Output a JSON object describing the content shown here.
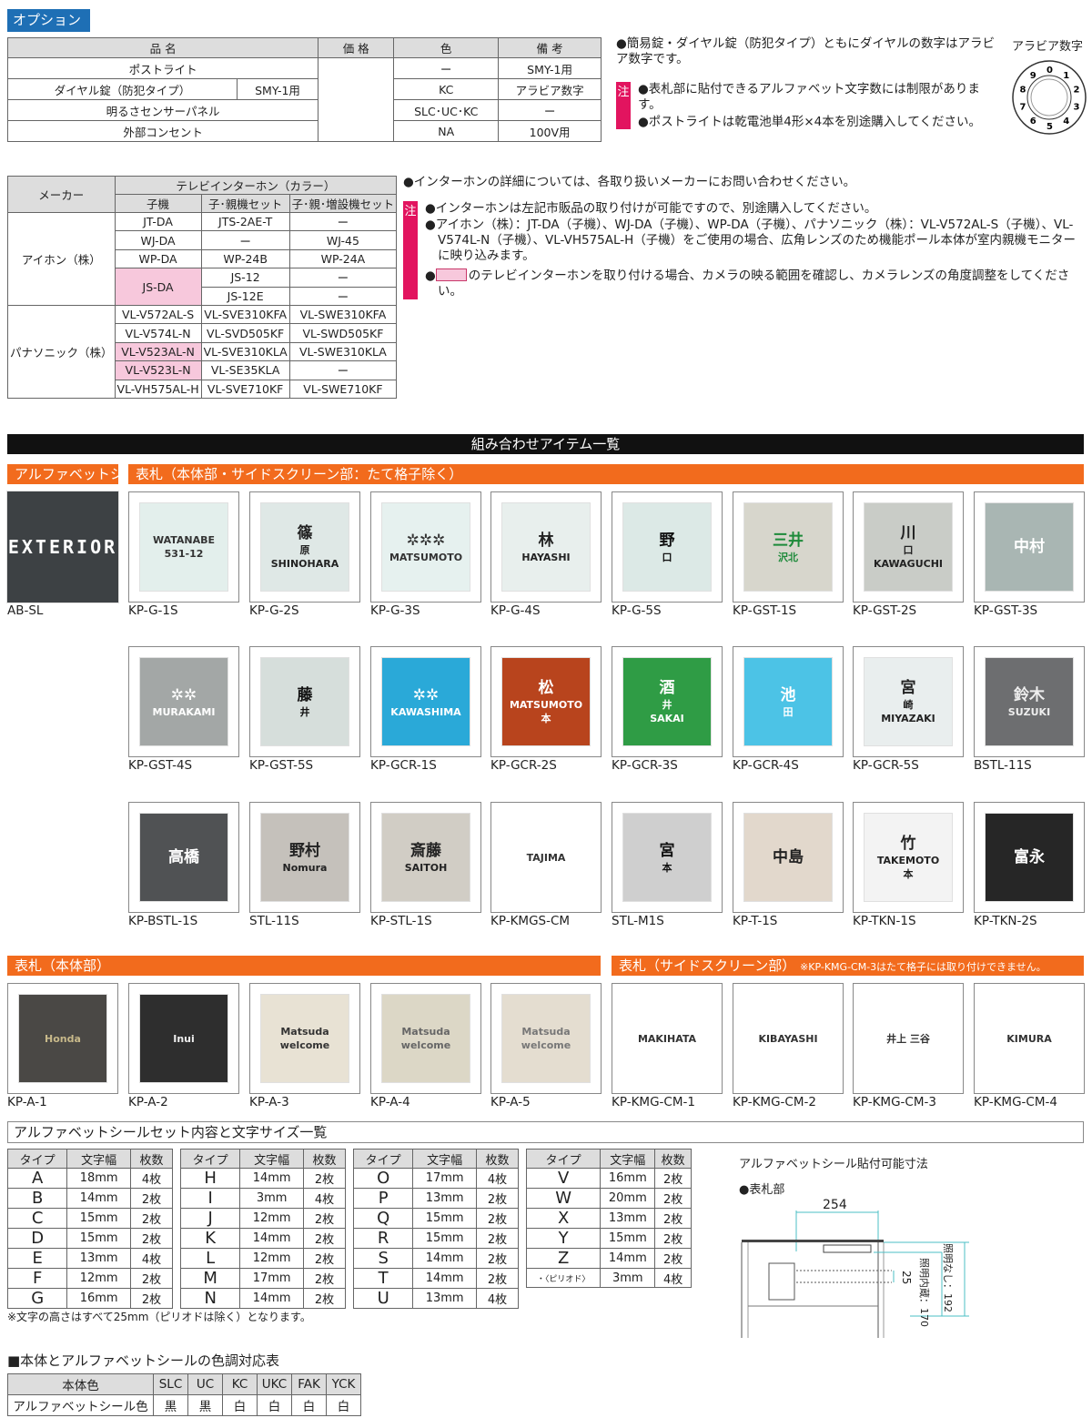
{
  "options": {
    "tag": "オプション",
    "headers": [
      "品 名",
      "価 格",
      "色",
      "備 考"
    ],
    "rows": [
      {
        "name": "ポストライト",
        "sub": "",
        "color": "ー",
        "note": "SMY-1用"
      },
      {
        "name": "ダイヤル錠（防犯タイプ）",
        "sub": "SMY-1用",
        "color": "KC",
        "note": "アラビア数字"
      },
      {
        "name": "明るさセンサーパネル",
        "sub": "",
        "color": "SLC･UC･KC",
        "note": "ー"
      },
      {
        "name": "外部コンセント",
        "sub": "",
        "color": "NA",
        "note": "100V用"
      }
    ],
    "note1": "●簡易錠・ダイヤル錠（防犯タイプ）ともにダイヤルの数字はアラビア数字です。",
    "chu": "注",
    "note2": "●表札部に貼付できるアルファベット文字数には制限があります。",
    "note3": "●ポストライトは乾電池単4形×4本を別途購入してください。",
    "dial_label": "アラビア数字",
    "dial_digits": [
      "0",
      "1",
      "2",
      "3",
      "4",
      "5",
      "6",
      "7",
      "8",
      "9"
    ]
  },
  "intercom": {
    "maker_header": "メーカー",
    "group_header": "テレビインターホン（カラー）",
    "col_headers": [
      "子機",
      "子･親機セット",
      "子･親･増設機セット"
    ],
    "makers": [
      "アイホン（株）",
      "パナソニック（株）"
    ],
    "rows": [
      [
        "JT-DA",
        "JTS-2AE-T",
        "ー"
      ],
      [
        "WJ-DA",
        "ー",
        "WJ-45"
      ],
      [
        "WP-DA",
        "WP-24B",
        "WP-24A"
      ],
      [
        "JS-DA",
        "JS-12",
        "ー"
      ],
      [
        "",
        "JS-12E",
        "ー"
      ],
      [
        "VL-V572AL-S",
        "VL-SVE310KFA",
        "VL-SWE310KFA"
      ],
      [
        "VL-V574L-N",
        "VL-SVD505KF",
        "VL-SWD505KF"
      ],
      [
        "VL-V523AL-N",
        "VL-SVE310KLA",
        "VL-SWE310KLA"
      ],
      [
        "VL-V523L-N",
        "VL-SE35KLA",
        "ー"
      ],
      [
        "VL-VH575AL-H",
        "VL-SVE710KF",
        "VL-SWE710KF"
      ]
    ],
    "highlight_color": "#f7c8dc",
    "note_top": "●インターホンの詳細については、各取り扱いメーカーにお問い合わせください。",
    "chu": "注",
    "note_a": "●インターホンは左記市販品の取り付けが可能ですので、別途購入してください。",
    "note_b": "●アイホン（株）：JT-DA（子機）、WJ-DA（子機）、WP-DA（子機）、パナソニック（株）：VL-V572AL-S（子機）、VL-V574L-N（子機）、VL-VH575AL-H（子機）をご使用の場合、広角レンズのため機能ポール本体が室内親機モニターに映り込みます。",
    "note_c": "のテレビインターホンを取り付ける場合、カメラの映る範囲を確認し、カメラレンズの角度調整をしてください。"
  },
  "items": {
    "title": "組み合わせアイテム一覧",
    "bar_alpha": "アルファベットシール",
    "bar_plate": "表札（本体部・サイドスクリーン部：たて格子除く）",
    "bar_body": "表札（本体部）",
    "bar_side": "表札（サイドスクリーン部）",
    "bar_side_note": "※KP-KMG-CM-3はたて格子には取り付けできません。",
    "accent": "#f26b1d",
    "tiles": [
      {
        "code": "AB-SL",
        "lines": [
          "EXTERIOR"
        ],
        "bg": "#3d4144",
        "fg": "#fff",
        "full": true
      },
      {
        "code": "KP-G-1S",
        "lines": [
          "WATANABE",
          "531-12"
        ],
        "bg": "#e3efec",
        "fg": "#333"
      },
      {
        "code": "KP-G-2S",
        "lines": [
          "篠",
          "原",
          "SHINOHARA"
        ],
        "bg": "#dfe8e6",
        "fg": "#222"
      },
      {
        "code": "KP-G-3S",
        "lines": [
          "✲✲✲",
          "MATSUMOTO"
        ],
        "bg": "#e6f1ef",
        "fg": "#333"
      },
      {
        "code": "KP-G-4S",
        "lines": [
          "林",
          "HAYASHI"
        ],
        "bg": "#e8efed",
        "fg": "#222"
      },
      {
        "code": "KP-G-5S",
        "lines": [
          "野",
          "口"
        ],
        "bg": "#dce9e6",
        "fg": "#111"
      },
      {
        "code": "KP-GST-1S",
        "lines": [
          "三井",
          "沢北"
        ],
        "bg": "#d7d6cc",
        "fg": "#1d8a3a"
      },
      {
        "code": "KP-GST-2S",
        "lines": [
          "川",
          "口",
          "KAWAGUCHI"
        ],
        "bg": "#c9ccc7",
        "fg": "#222"
      },
      {
        "code": "KP-GST-3S",
        "lines": [
          "中村"
        ],
        "bg": "#a9b6b3",
        "fg": "#fff"
      },
      {
        "code": "KP-GST-4S",
        "lines": [
          "✲✲",
          "MURAKAMI"
        ],
        "bg": "#a3a7a6",
        "fg": "#fff"
      },
      {
        "code": "KP-GST-5S",
        "lines": [
          "藤",
          "井"
        ],
        "bg": "#d6dedb",
        "fg": "#111"
      },
      {
        "code": "KP-GCR-1S",
        "lines": [
          "✲✲",
          "KAWASHIMA"
        ],
        "bg": "#2aa9d8",
        "fg": "#fff"
      },
      {
        "code": "KP-GCR-2S",
        "lines": [
          "松",
          "MATSUMOTO",
          "本"
        ],
        "bg": "#b8441d",
        "fg": "#fff"
      },
      {
        "code": "KP-GCR-3S",
        "lines": [
          "酒",
          "井",
          "SAKAI"
        ],
        "bg": "#2f9c45",
        "fg": "#fff"
      },
      {
        "code": "KP-GCR-4S",
        "lines": [
          "池",
          "田"
        ],
        "bg": "#4cc3e6",
        "fg": "#fff"
      },
      {
        "code": "KP-GCR-5S",
        "lines": [
          "宮",
          "崎",
          "MIYAZAKI"
        ],
        "bg": "#e9eeee",
        "fg": "#222"
      },
      {
        "code": "BSTL-11S",
        "lines": [
          "鈴木",
          "SUZUKI"
        ],
        "bg": "#6d6e70",
        "fg": "#eee"
      },
      {
        "code": "KP-BSTL-1S",
        "lines": [
          "高橋"
        ],
        "bg": "#505254",
        "fg": "#fff"
      },
      {
        "code": "STL-11S",
        "lines": [
          "野村",
          "Nomura"
        ],
        "bg": "#c5c1bb",
        "fg": "#222"
      },
      {
        "code": "KP-STL-1S",
        "lines": [
          "斎藤",
          "SAITOH"
        ],
        "bg": "#d1cdc5",
        "fg": "#222"
      },
      {
        "code": "KP-KMGS-CM",
        "lines": [
          "TAJIMA"
        ],
        "bg": "#fff",
        "fg": "#333"
      },
      {
        "code": "STL-M1S",
        "lines": [
          "宮",
          "本"
        ],
        "bg": "#cfcfcf",
        "fg": "#111"
      },
      {
        "code": "KP-T-1S",
        "lines": [
          "中島"
        ],
        "bg": "#e2d8cc",
        "fg": "#222"
      },
      {
        "code": "KP-TKN-1S",
        "lines": [
          "竹",
          "TAKEMOTO",
          "本"
        ],
        "bg": "#f3f3f3",
        "fg": "#222"
      },
      {
        "code": "KP-TKN-2S",
        "lines": [
          "富永"
        ],
        "bg": "#262626",
        "fg": "#fff"
      },
      {
        "code": "KP-A-1",
        "lines": [
          "Honda"
        ],
        "bg": "#4a4845",
        "fg": "#c8b98a"
      },
      {
        "code": "KP-A-2",
        "lines": [
          "Inui"
        ],
        "bg": "#2e2e2e",
        "fg": "#eee"
      },
      {
        "code": "KP-A-3",
        "lines": [
          "Matsuda",
          "welcome"
        ],
        "bg": "#e8e2d4",
        "fg": "#333"
      },
      {
        "code": "KP-A-4",
        "lines": [
          "Matsuda",
          "welcome"
        ],
        "bg": "#dcd7c6",
        "fg": "#666"
      },
      {
        "code": "KP-A-5",
        "lines": [
          "Matsuda",
          "welcome"
        ],
        "bg": "#e4ddd0",
        "fg": "#777"
      },
      {
        "code": "KP-KMG-CM-1",
        "lines": [
          "MAKIHATA"
        ],
        "bg": "#fff",
        "fg": "#333"
      },
      {
        "code": "KP-KMG-CM-2",
        "lines": [
          "KIBAYASHI"
        ],
        "bg": "#fff",
        "fg": "#333"
      },
      {
        "code": "KP-KMG-CM-3",
        "lines": [
          "井上 三谷"
        ],
        "bg": "#fff",
        "fg": "#333"
      },
      {
        "code": "KP-KMG-CM-4",
        "lines": [
          "KIMURA"
        ],
        "bg": "#fff",
        "fg": "#333"
      }
    ]
  },
  "alphabet": {
    "title": "アルファベットシールセット内容と文字サイズ一覧",
    "headers": [
      "タイプ",
      "文字幅",
      "枚数"
    ],
    "tables": [
      [
        [
          "A",
          "18mm",
          "4枚"
        ],
        [
          "B",
          "14mm",
          "2枚"
        ],
        [
          "C",
          "15mm",
          "2枚"
        ],
        [
          "D",
          "15mm",
          "2枚"
        ],
        [
          "E",
          "13mm",
          "4枚"
        ],
        [
          "F",
          "12mm",
          "2枚"
        ],
        [
          "G",
          "16mm",
          "2枚"
        ]
      ],
      [
        [
          "H",
          "14mm",
          "2枚"
        ],
        [
          "I",
          "3mm",
          "4枚"
        ],
        [
          "J",
          "12mm",
          "2枚"
        ],
        [
          "K",
          "14mm",
          "2枚"
        ],
        [
          "L",
          "12mm",
          "2枚"
        ],
        [
          "M",
          "17mm",
          "2枚"
        ],
        [
          "N",
          "14mm",
          "2枚"
        ]
      ],
      [
        [
          "O",
          "17mm",
          "4枚"
        ],
        [
          "P",
          "13mm",
          "2枚"
        ],
        [
          "Q",
          "15mm",
          "2枚"
        ],
        [
          "R",
          "15mm",
          "2枚"
        ],
        [
          "S",
          "14mm",
          "2枚"
        ],
        [
          "T",
          "14mm",
          "2枚"
        ],
        [
          "U",
          "13mm",
          "4枚"
        ]
      ],
      [
        [
          "V",
          "16mm",
          "2枚"
        ],
        [
          "W",
          "20mm",
          "2枚"
        ],
        [
          "X",
          "13mm",
          "2枚"
        ],
        [
          "Y",
          "15mm",
          "2枚"
        ],
        [
          "Z",
          "14mm",
          "2枚"
        ],
        [
          "・〈ピリオド〉",
          "3mm",
          "4枚"
        ]
      ]
    ],
    "footnote": "※文字の高さはすべて25mm（ピリオドは除く）となります。",
    "diagram_title": "アルファベットシール貼付可能寸法",
    "diagram_sub": "●表札部",
    "dim_width": "254",
    "dim_height": "25",
    "dim_lit": "照明内蔵：170",
    "dim_unlit": "照明なし：192"
  },
  "color_table": {
    "title": "■本体とアルファベットシールの色調対応表",
    "row_header_1": "本体色",
    "row_header_2": "アルファベットシール色",
    "body_colors": [
      "SLC",
      "UC",
      "KC",
      "UKC",
      "FAK",
      "YCK"
    ],
    "seal_colors": [
      "黒",
      "黒",
      "白",
      "白",
      "白",
      "白"
    ]
  }
}
